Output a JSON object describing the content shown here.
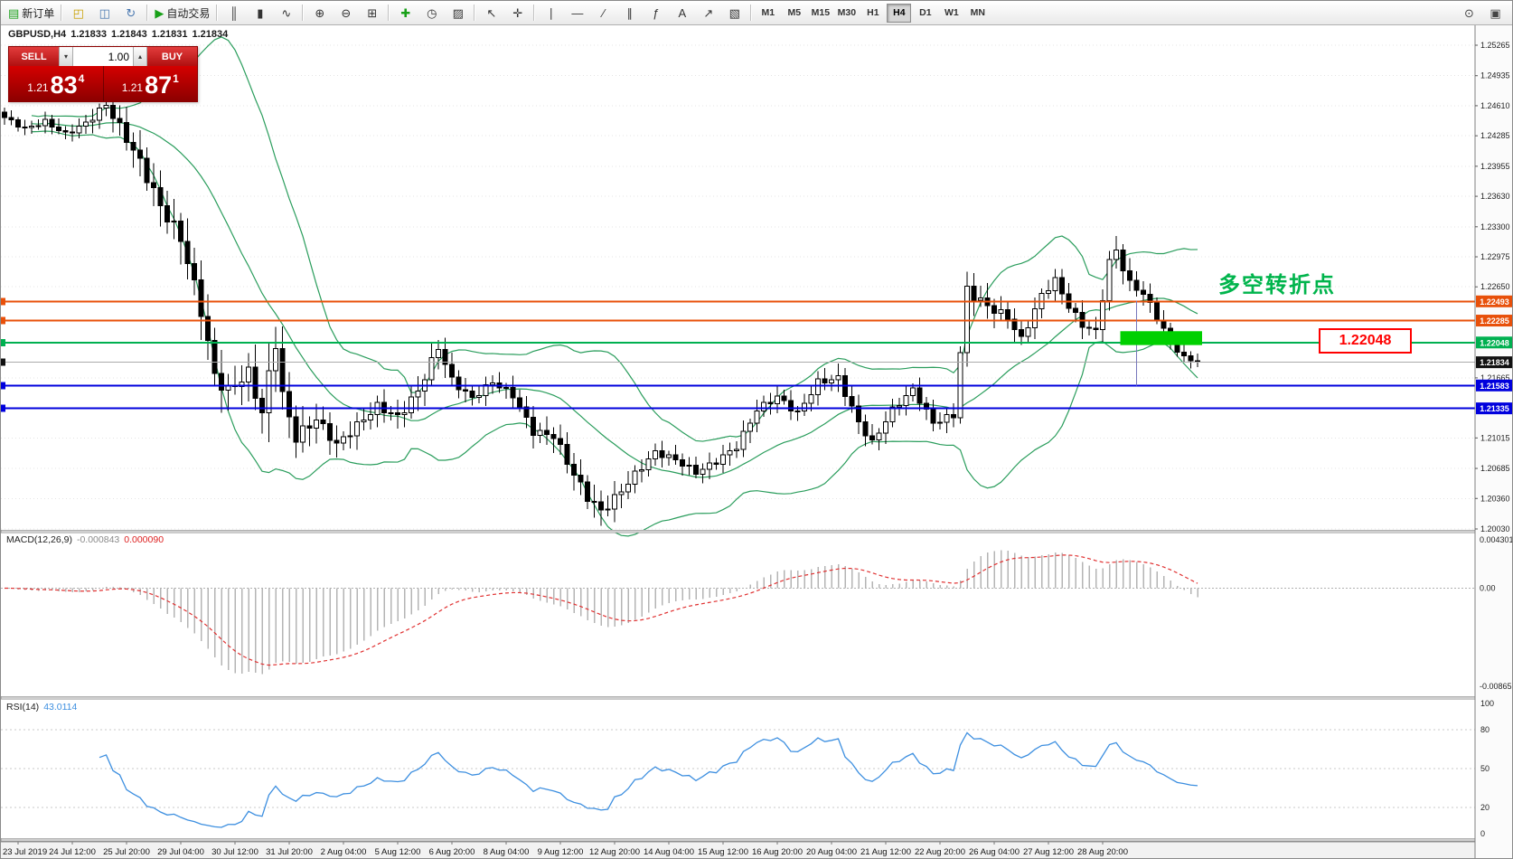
{
  "toolbar": {
    "groups": [
      {
        "buttons": [
          {
            "name": "new-order",
            "glyph": "▤",
            "color": "#1da11d",
            "label": "新订单"
          }
        ]
      },
      {
        "buttons": [
          {
            "name": "open-file",
            "glyph": "◰",
            "color": "#c8a000"
          },
          {
            "name": "profiles",
            "glyph": "◫",
            "color": "#4a78b0"
          },
          {
            "name": "refresh",
            "glyph": "↻",
            "color": "#4a78b0"
          }
        ]
      },
      {
        "buttons": [
          {
            "name": "auto-trading",
            "glyph": "▶",
            "color": "#18a018",
            "label": "自动交易"
          }
        ]
      },
      {
        "buttons": [
          {
            "name": "bar-chart",
            "glyph": "║",
            "color": "#333333"
          },
          {
            "name": "candlestick-chart",
            "glyph": "▮",
            "color": "#333333"
          },
          {
            "name": "line-chart",
            "glyph": "∿",
            "color": "#333333"
          }
        ]
      },
      {
        "buttons": [
          {
            "name": "zoom-in",
            "glyph": "⊕",
            "color": "#333333"
          },
          {
            "name": "zoom-out",
            "glyph": "⊖",
            "color": "#333333"
          },
          {
            "name": "tile-windows",
            "glyph": "⊞",
            "color": "#333333"
          }
        ]
      },
      {
        "buttons": [
          {
            "name": "indicators",
            "glyph": "✚",
            "color": "#18a018"
          },
          {
            "name": "periods",
            "glyph": "◷",
            "color": "#333333"
          },
          {
            "name": "templates",
            "glyph": "▨",
            "color": "#333333"
          }
        ]
      },
      {
        "buttons": [
          {
            "name": "cursor",
            "glyph": "↖",
            "color": "#333333"
          },
          {
            "name": "crosshair",
            "glyph": "✛",
            "color": "#333333"
          }
        ]
      },
      {
        "buttons": [
          {
            "name": "vertical-line",
            "glyph": "∣",
            "color": "#333333"
          },
          {
            "name": "horizontal-line",
            "glyph": "―",
            "color": "#333333"
          },
          {
            "name": "trendline",
            "glyph": "∕",
            "color": "#333333"
          },
          {
            "name": "equidistant-channel",
            "glyph": "∥",
            "color": "#333333"
          },
          {
            "name": "fibonacci",
            "glyph": "ƒ",
            "color": "#333333"
          },
          {
            "name": "text-label",
            "glyph": "A",
            "color": "#333333"
          },
          {
            "name": "arrows",
            "glyph": "↗",
            "color": "#333333"
          },
          {
            "name": "shapes",
            "glyph": "▧",
            "color": "#333333"
          }
        ]
      }
    ],
    "timeframes": [
      "M1",
      "M5",
      "M15",
      "M30",
      "H1",
      "H4",
      "D1",
      "W1",
      "MN"
    ],
    "active_timeframe": "H4",
    "right_buttons": [
      {
        "name": "magnifier",
        "glyph": "⊙",
        "color": "#444444"
      },
      {
        "name": "new-window",
        "glyph": "▣",
        "color": "#444444"
      }
    ]
  },
  "symbol_bar": {
    "symbol": "GBPUSD,H4",
    "open": "1.21833",
    "high": "1.21843",
    "low": "1.21831",
    "close": "1.21834"
  },
  "trade_panel": {
    "sell_label": "SELL",
    "buy_label": "BUY",
    "volume": "1.00",
    "bid": {
      "prefix": "1.21",
      "big": "83",
      "pip": "4"
    },
    "ask": {
      "prefix": "1.21",
      "big": "87",
      "pip": "1"
    }
  },
  "annotation": {
    "text": "多空转折点",
    "color": "#00b44c"
  },
  "price_callout": {
    "text": "1.22048"
  },
  "chart": {
    "price_ticks": [
      "1.25265",
      "1.24935",
      "1.24610",
      "1.24285",
      "1.23955",
      "1.23630",
      "1.23300",
      "1.22975",
      "1.22650",
      "1.21665",
      "1.21015",
      "1.20685",
      "1.20360",
      "1.20030"
    ],
    "levels": [
      {
        "price": 1.22493,
        "label": "1.22493",
        "color": "#e8500a",
        "width": 2
      },
      {
        "price": 1.22285,
        "label": "1.22285",
        "color": "#e8500a",
        "width": 2
      },
      {
        "price": 1.22048,
        "label": "1.22048",
        "color": "#00b050",
        "width": 2
      },
      {
        "price": 1.21834,
        "label": "1.21834",
        "color": "#111111",
        "width": 1,
        "line_color": "#aaaaaa"
      },
      {
        "price": 1.21583,
        "label": "1.21583",
        "color": "#0000dd",
        "width": 2
      },
      {
        "price": 1.21335,
        "label": "1.21335",
        "color": "#0000dd",
        "width": 2
      }
    ],
    "highlight": {
      "index_start": 165,
      "index_end": 177,
      "price_top": 1.2217,
      "price_bottom": 1.2202,
      "color": "#00d000"
    },
    "vertical_marker": {
      "index": 167,
      "price_from": 1.225,
      "price_to": 1.2158,
      "color": "#7777bb"
    },
    "candles": {
      "count": 177,
      "up_color": "#ffffff",
      "down_color": "#000000",
      "close_waypoints": [
        [
          0,
          1.2448
        ],
        [
          3,
          1.2436
        ],
        [
          6,
          1.2444
        ],
        [
          9,
          1.243
        ],
        [
          12,
          1.2442
        ],
        [
          15,
          1.2462
        ],
        [
          17,
          1.2438
        ],
        [
          20,
          1.24
        ],
        [
          23,
          1.2352
        ],
        [
          26,
          1.2318
        ],
        [
          29,
          1.224
        ],
        [
          31,
          1.2168
        ],
        [
          33,
          1.2152
        ],
        [
          36,
          1.2172
        ],
        [
          38,
          1.2128
        ],
        [
          40,
          1.2208
        ],
        [
          41,
          1.2146
        ],
        [
          43,
          1.2102
        ],
        [
          46,
          1.2122
        ],
        [
          49,
          1.2094
        ],
        [
          52,
          1.2115
        ],
        [
          55,
          1.2136
        ],
        [
          58,
          1.2124
        ],
        [
          61,
          1.2152
        ],
        [
          64,
          1.22
        ],
        [
          66,
          1.2164
        ],
        [
          69,
          1.2144
        ],
        [
          72,
          1.2162
        ],
        [
          75,
          1.2148
        ],
        [
          78,
          1.2108
        ],
        [
          81,
          1.2104
        ],
        [
          84,
          1.2062
        ],
        [
          86,
          1.2038
        ],
        [
          88,
          1.2022
        ],
        [
          90,
          1.2036
        ],
        [
          93,
          1.2062
        ],
        [
          96,
          1.2086
        ],
        [
          99,
          1.2078
        ],
        [
          102,
          1.2064
        ],
        [
          105,
          1.2076
        ],
        [
          108,
          1.2092
        ],
        [
          111,
          1.2132
        ],
        [
          114,
          1.2146
        ],
        [
          117,
          1.2128
        ],
        [
          120,
          1.2162
        ],
        [
          123,
          1.2166
        ],
        [
          126,
          1.2118
        ],
        [
          128,
          1.2096
        ],
        [
          131,
          1.2132
        ],
        [
          134,
          1.2154
        ],
        [
          137,
          1.2118
        ],
        [
          140,
          1.2126
        ],
        [
          142,
          1.2262
        ],
        [
          145,
          1.2244
        ],
        [
          148,
          1.2232
        ],
        [
          150,
          1.2208
        ],
        [
          153,
          1.2256
        ],
        [
          155,
          1.2272
        ],
        [
          157,
          1.2244
        ],
        [
          159,
          1.2224
        ],
        [
          161,
          1.2216
        ],
        [
          163,
          1.2292
        ],
        [
          164,
          1.2304
        ],
        [
          166,
          1.2268
        ],
        [
          168,
          1.2258
        ],
        [
          170,
          1.2232
        ],
        [
          172,
          1.2206
        ],
        [
          174,
          1.2188
        ],
        [
          176,
          1.21834
        ]
      ],
      "volatility_waypoints": [
        [
          0,
          0.001
        ],
        [
          10,
          0.0012
        ],
        [
          15,
          0.0018
        ],
        [
          20,
          0.0028
        ],
        [
          26,
          0.0032
        ],
        [
          31,
          0.0034
        ],
        [
          36,
          0.0028
        ],
        [
          40,
          0.0045
        ],
        [
          42,
          0.003
        ],
        [
          48,
          0.0022
        ],
        [
          55,
          0.0018
        ],
        [
          62,
          0.0022
        ],
        [
          70,
          0.0014
        ],
        [
          78,
          0.0018
        ],
        [
          84,
          0.0022
        ],
        [
          88,
          0.0024
        ],
        [
          95,
          0.0014
        ],
        [
          103,
          0.0014
        ],
        [
          110,
          0.0016
        ],
        [
          118,
          0.0014
        ],
        [
          125,
          0.0018
        ],
        [
          133,
          0.0014
        ],
        [
          140,
          0.0016
        ],
        [
          143,
          0.0024
        ],
        [
          150,
          0.0016
        ],
        [
          158,
          0.0016
        ],
        [
          164,
          0.002
        ],
        [
          170,
          0.0015
        ],
        [
          176,
          0.001
        ]
      ]
    },
    "bollinger": {
      "period": 20,
      "deviation": 2,
      "color": "#2a9d5c"
    },
    "date_labels": [
      {
        "index": 2,
        "text": "23 Jul 2019"
      },
      {
        "index": 10,
        "text": "24 Jul 12:00"
      },
      {
        "index": 18,
        "text": "25 Jul 20:00"
      },
      {
        "index": 26,
        "text": "29 Jul 04:00"
      },
      {
        "index": 34,
        "text": "30 Jul 12:00"
      },
      {
        "index": 42,
        "text": "31 Jul 20:00"
      },
      {
        "index": 50,
        "text": "2 Aug 04:00"
      },
      {
        "index": 58,
        "text": "5 Aug 12:00"
      },
      {
        "index": 66,
        "text": "6 Aug 20:00"
      },
      {
        "index": 74,
        "text": "8 Aug 04:00"
      },
      {
        "index": 82,
        "text": "9 Aug 12:00"
      },
      {
        "index": 90,
        "text": "12 Aug 20:00"
      },
      {
        "index": 98,
        "text": "14 Aug 04:00"
      },
      {
        "index": 106,
        "text": "15 Aug 12:00"
      },
      {
        "index": 114,
        "text": "16 Aug 20:00"
      },
      {
        "index": 122,
        "text": "20 Aug 04:00"
      },
      {
        "index": 130,
        "text": "21 Aug 12:00"
      },
      {
        "index": 138,
        "text": "22 Aug 20:00"
      },
      {
        "index": 146,
        "text": "26 Aug 04:00"
      },
      {
        "index": 154,
        "text": "27 Aug 12:00"
      },
      {
        "index": 162,
        "text": "28 Aug 20:00"
      }
    ],
    "macd": {
      "name": "MACD(12,26,9)",
      "main_value": "-0.000843",
      "signal_value": "0.000090",
      "axis_top": "0.004301",
      "axis_zero": "0.00",
      "axis_bottom": "-0.008651",
      "hist_color": "#b4b4b4",
      "signal_color": "#e03030"
    },
    "rsi": {
      "name": "RSI(14)",
      "value": "43.0114",
      "axis": [
        "100",
        "80",
        "50",
        "20",
        "0"
      ],
      "levels": [
        80,
        50,
        20
      ],
      "color": "#3d8fe0"
    }
  }
}
